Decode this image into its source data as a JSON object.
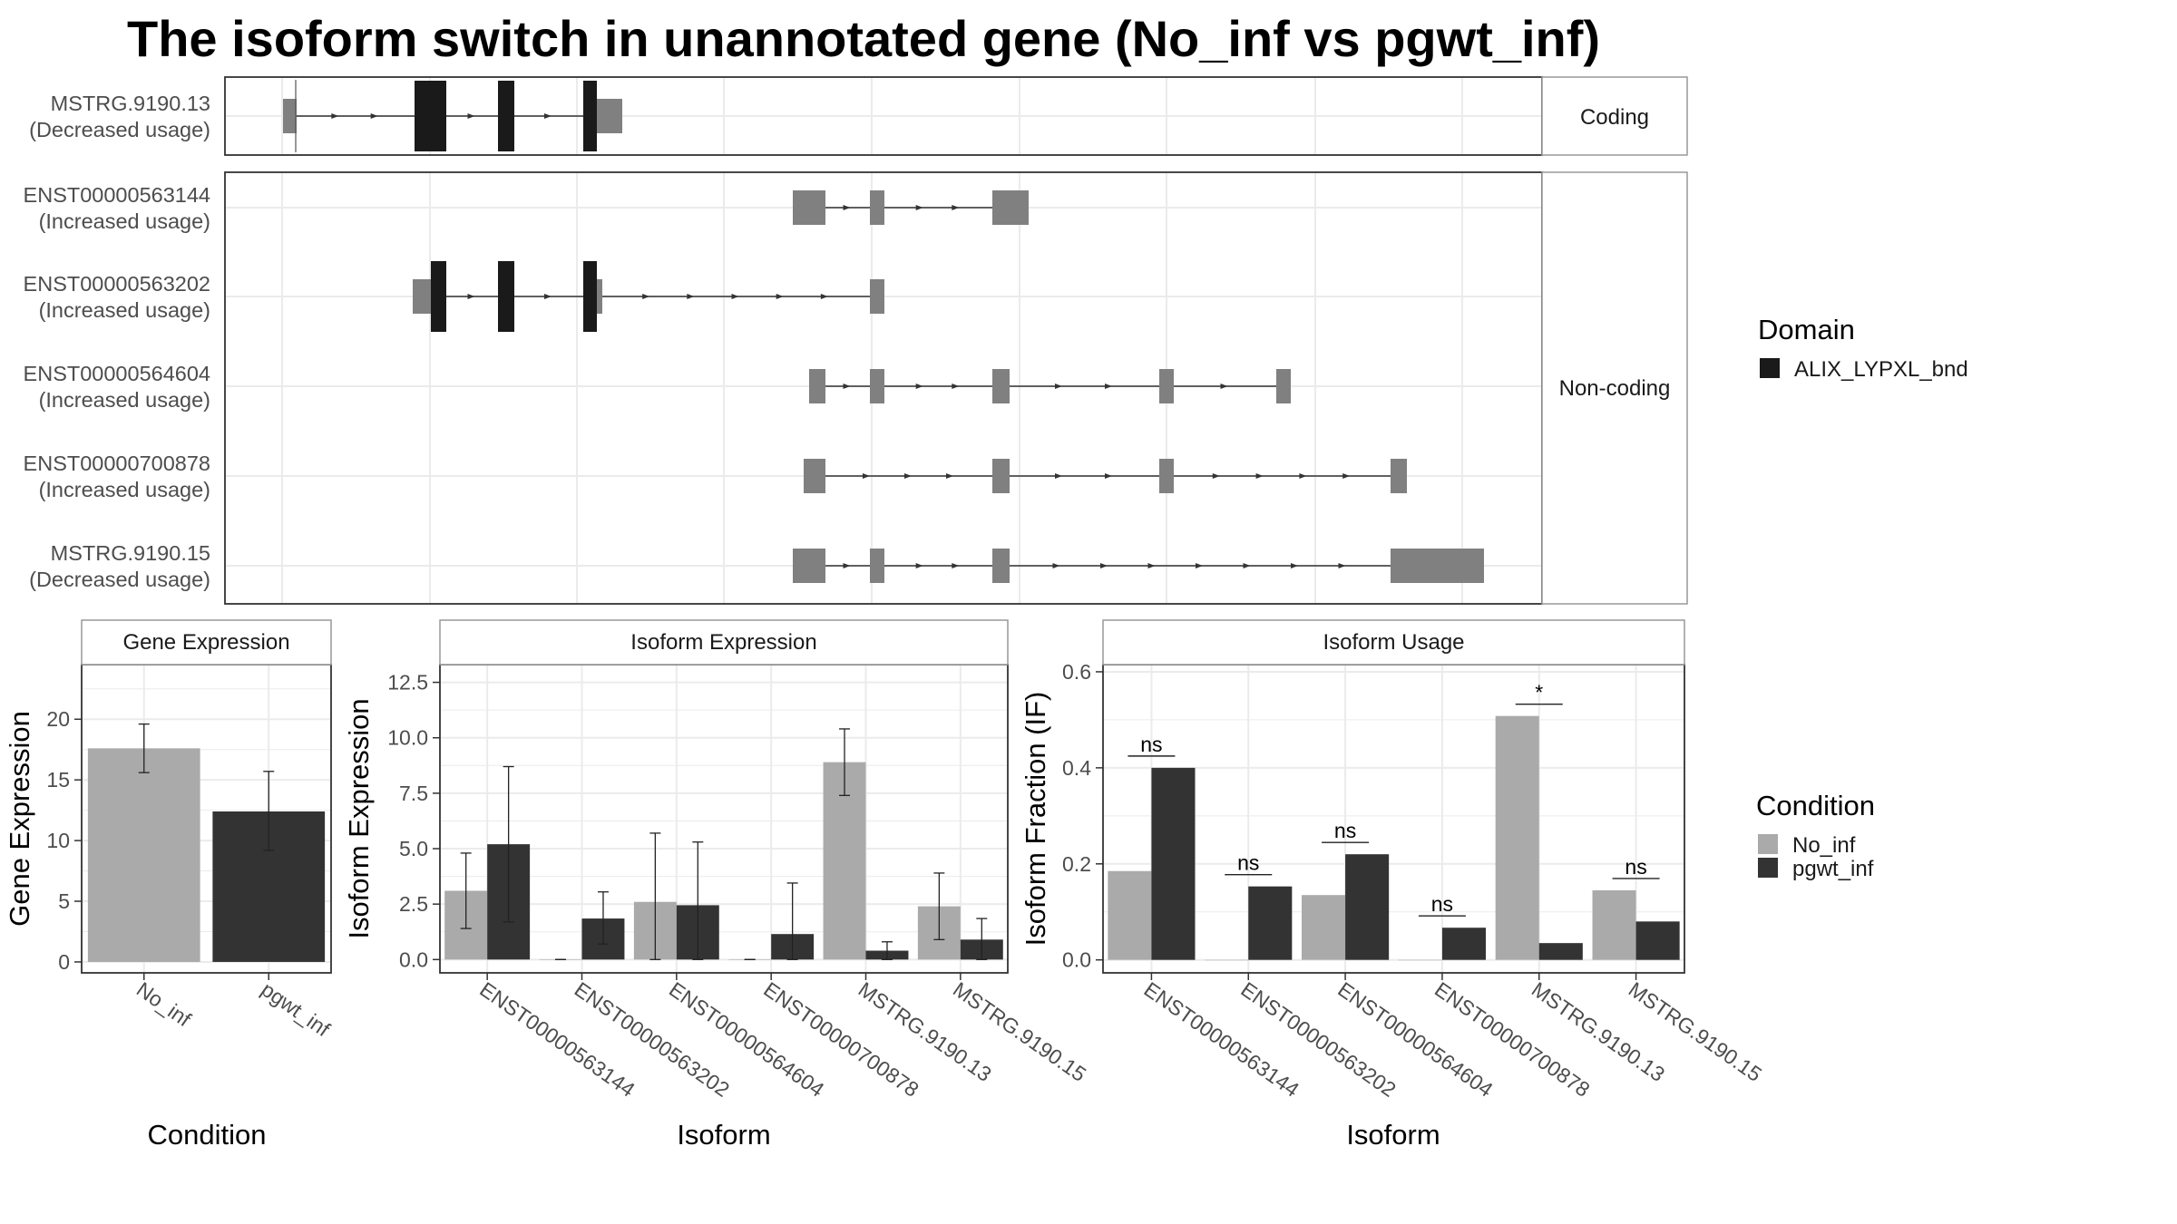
{
  "title": "The isoform switch in unannotated gene (No_inf vs pgwt_inf)",
  "colors": {
    "no_inf": "#aaaaaa",
    "pgwt_inf": "#333333",
    "domain": "#1a1a1a",
    "utr": "#808080",
    "grid": "#ebebeb",
    "panel_border": "#333333",
    "strip_fill": "#ffffff",
    "strip_border": "#999999"
  },
  "transcripts_plot": {
    "facets": [
      "Coding",
      "Non-coding"
    ],
    "rows": [
      {
        "id": "MSTRG.9190.13",
        "usage": "(Decreased usage)",
        "facet": "Coding"
      },
      {
        "id": "ENST00000563144",
        "usage": "(Increased usage)",
        "facet": "Non-coding"
      },
      {
        "id": "ENST00000563202",
        "usage": "(Increased usage)",
        "facet": "Non-coding"
      },
      {
        "id": "ENST00000564604",
        "usage": "(Increased usage)",
        "facet": "Non-coding"
      },
      {
        "id": "ENST00000700878",
        "usage": "(Increased usage)",
        "facet": "Non-coding"
      },
      {
        "id": "MSTRG.9190.15",
        "usage": "(Decreased usage)",
        "facet": "Non-coding"
      }
    ],
    "legend": {
      "title": "Domain",
      "items": [
        {
          "label": "ALIX_LYPXL_bnd",
          "color": "#1a1a1a"
        }
      ]
    }
  },
  "chart_data": [
    {
      "type": "bar",
      "title": "Gene Expression",
      "xlabel": "Condition",
      "ylabel": "Gene Expression",
      "categories": [
        "No_inf",
        "pgwt_inf"
      ],
      "values": [
        17.6,
        12.4
      ],
      "error": [
        [
          15.6,
          19.6
        ],
        [
          9.2,
          15.7
        ]
      ],
      "ylim": [
        -0.9,
        24.5
      ],
      "yticks": [
        "0",
        "5",
        "10",
        "15",
        "20"
      ]
    },
    {
      "type": "bar",
      "title": "Isoform Expression",
      "xlabel": "Isoform",
      "ylabel": "Isoform Expression",
      "categories": [
        "ENST00000563144",
        "ENST00000563202",
        "ENST00000564604",
        "ENST00000700878",
        "MSTRG.9190.13",
        "MSTRG.9190.15"
      ],
      "series": [
        {
          "name": "No_inf",
          "values": [
            3.1,
            0.0,
            2.6,
            0.0,
            8.9,
            2.4
          ],
          "error": [
            [
              1.4,
              4.8
            ],
            [
              0,
              0
            ],
            [
              0,
              5.7
            ],
            [
              0,
              0
            ],
            [
              7.4,
              10.4
            ],
            [
              0.9,
              3.9
            ]
          ]
        },
        {
          "name": "pgwt_inf",
          "values": [
            5.2,
            1.85,
            2.45,
            1.15,
            0.4,
            0.9
          ],
          "error": [
            [
              1.7,
              8.7
            ],
            [
              0.7,
              3.05
            ],
            [
              0,
              5.3
            ],
            [
              0,
              3.45
            ],
            [
              0,
              0.8
            ],
            [
              0,
              1.85
            ]
          ]
        }
      ],
      "ylim": [
        -0.6,
        13.3
      ],
      "yticks": [
        "0.0",
        "2.5",
        "5.0",
        "7.5",
        "10.0",
        "12.5"
      ]
    },
    {
      "type": "bar",
      "title": "Isoform Usage",
      "xlabel": "Isoform",
      "ylabel": "Isoform Fraction (IF)",
      "categories": [
        "ENST00000563144",
        "ENST00000563202",
        "ENST00000564604",
        "ENST00000700878",
        "MSTRG.9190.13",
        "MSTRG.9190.15"
      ],
      "series": [
        {
          "name": "No_inf",
          "values": [
            0.185,
            0.0,
            0.135,
            0.0,
            0.508,
            0.145
          ]
        },
        {
          "name": "pgwt_inf",
          "values": [
            0.4,
            0.153,
            0.22,
            0.067,
            0.035,
            0.08
          ]
        }
      ],
      "significance": [
        "ns",
        "ns",
        "ns",
        "ns",
        "*",
        "ns"
      ],
      "ylim": [
        -0.027,
        0.615
      ],
      "yticks": [
        "0.0",
        "0.2",
        "0.4",
        "0.6"
      ]
    }
  ],
  "condition_legend": {
    "title": "Condition",
    "items": [
      {
        "label": "No_inf",
        "color": "#aaaaaa"
      },
      {
        "label": "pgwt_inf",
        "color": "#333333"
      }
    ]
  }
}
